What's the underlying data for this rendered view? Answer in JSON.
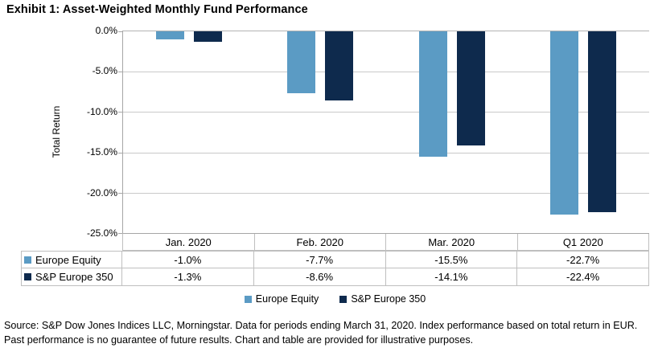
{
  "title": "Exhibit 1: Asset-Weighted Monthly Fund Performance",
  "chart_data": {
    "type": "bar",
    "title": "Exhibit 1: Asset-Weighted Monthly Fund Performance",
    "categories": [
      "Jan. 2020",
      "Feb. 2020",
      "Mar. 2020",
      "Q1 2020"
    ],
    "series": [
      {
        "name": "Europe Equity",
        "color": "#5B9BC4",
        "values": [
          -1.0,
          -7.7,
          -15.5,
          -22.7
        ]
      },
      {
        "name": "S&P Europe 350",
        "color": "#0E2A4D",
        "values": [
          -1.3,
          -8.6,
          -14.1,
          -22.4
        ]
      }
    ],
    "xlabel": "",
    "ylabel": "Total Return",
    "ylim": [
      -25,
      0
    ],
    "ytick_labels": [
      "0.0%",
      "-5.0%",
      "-10.0%",
      "-15.0%",
      "-20.0%",
      "-25.0%"
    ],
    "grid": true,
    "legend_position": "bottom"
  },
  "table": {
    "header": [
      "Jan. 2020",
      "Feb. 2020",
      "Mar. 2020",
      "Q1 2020"
    ],
    "rows": [
      {
        "label": "Europe Equity",
        "values": [
          "-1.0%",
          "-7.7%",
          "-15.5%",
          "-22.7%"
        ]
      },
      {
        "label": "S&P Europe 350",
        "values": [
          "-1.3%",
          "-8.6%",
          "-14.1%",
          "-22.4%"
        ]
      }
    ]
  },
  "legend": {
    "items": [
      {
        "label": "Europe Equity"
      },
      {
        "label": "S&P Europe 350"
      }
    ]
  },
  "source_text": "Source: S&P Dow Jones Indices LLC, Morningstar. Data for periods ending March 31, 2020. Index performance based on total return in EUR. Past performance is no guarantee of future results. Chart and table are provided for illustrative purposes."
}
